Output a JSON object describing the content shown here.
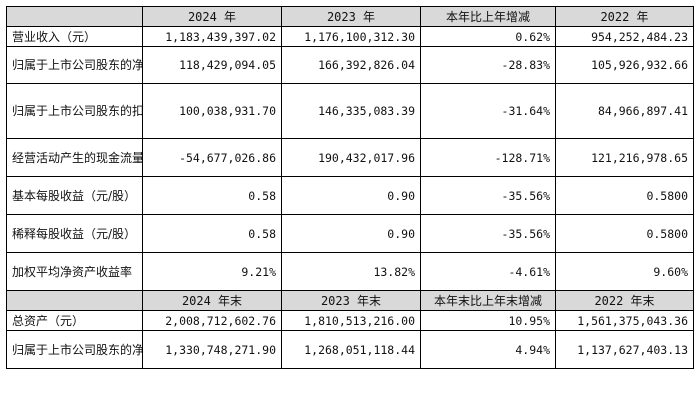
{
  "header1": [
    "",
    "2024 年",
    "2023 年",
    "本年比上年增减",
    "2022 年"
  ],
  "rows1": [
    {
      "label": "营业收入（元）",
      "v2024": "1,183,439,397.02",
      "v2023": "1,176,100,312.30",
      "change": "0.62%",
      "v2022": "954,252,484.23"
    },
    {
      "label": "归属于上市公司股东的净利润（元）",
      "v2024": "118,429,094.05",
      "v2023": "166,392,826.04",
      "change": "-28.83%",
      "v2022": "105,926,932.66"
    },
    {
      "label": "归属于上市公司股东的扣除非经常性损益的净利润（元）",
      "v2024": "100,038,931.70",
      "v2023": "146,335,083.39",
      "change": "-31.64%",
      "v2022": "84,966,897.41"
    },
    {
      "label": "经营活动产生的现金流量净额（元）",
      "v2024": "-54,677,026.86",
      "v2023": "190,432,017.96",
      "change": "-128.71%",
      "v2022": "121,216,978.65"
    },
    {
      "label": "基本每股收益（元/股）",
      "v2024": "0.58",
      "v2023": "0.90",
      "change": "-35.56%",
      "v2022": "0.5800"
    },
    {
      "label": "稀释每股收益（元/股）",
      "v2024": "0.58",
      "v2023": "0.90",
      "change": "-35.56%",
      "v2022": "0.5800"
    },
    {
      "label": "加权平均净资产收益率",
      "v2024": "9.21%",
      "v2023": "13.82%",
      "change": "-4.61%",
      "v2022": "9.60%"
    }
  ],
  "header2": [
    "",
    "2024 年末",
    "2023 年末",
    "本年末比上年末增减",
    "2022 年末"
  ],
  "rows2": [
    {
      "label": "总资产（元）",
      "v2024": "2,008,712,602.76",
      "v2023": "1,810,513,216.00",
      "change": "10.95%",
      "v2022": "1,561,375,043.36"
    },
    {
      "label": "归属于上市公司股东的净资产（元）",
      "v2024": "1,330,748,271.90",
      "v2023": "1,268,051,118.44",
      "change": "4.94%",
      "v2022": "1,137,627,403.13"
    }
  ]
}
